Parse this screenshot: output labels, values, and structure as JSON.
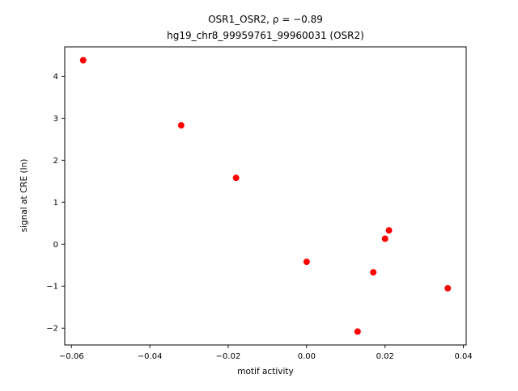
{
  "chart_data": {
    "type": "scatter",
    "title_line1": "OSR1_OSR2, ρ = −0.89",
    "title_line2": "hg19_chr8_99959761_99960031 (OSR2)",
    "xlabel": "motif activity",
    "ylabel": "signal at CRE (ln)",
    "xlim": [
      -0.0617,
      0.0407
    ],
    "ylim": [
      -2.4,
      4.7
    ],
    "xticks": [
      -0.06,
      -0.04,
      -0.02,
      0.0,
      0.02,
      0.04
    ],
    "yticks": [
      -2,
      -1,
      0,
      1,
      2,
      3,
      4
    ],
    "grid": false,
    "legend": "none",
    "marker_color": "#ff0000",
    "points": [
      {
        "x": -0.057,
        "y": 4.38
      },
      {
        "x": -0.032,
        "y": 2.83
      },
      {
        "x": -0.018,
        "y": 1.58
      },
      {
        "x": 0.0,
        "y": -0.42
      },
      {
        "x": 0.013,
        "y": -2.08
      },
      {
        "x": 0.017,
        "y": -0.67
      },
      {
        "x": 0.02,
        "y": 0.13
      },
      {
        "x": 0.021,
        "y": 0.33
      },
      {
        "x": 0.036,
        "y": -1.05
      }
    ]
  }
}
